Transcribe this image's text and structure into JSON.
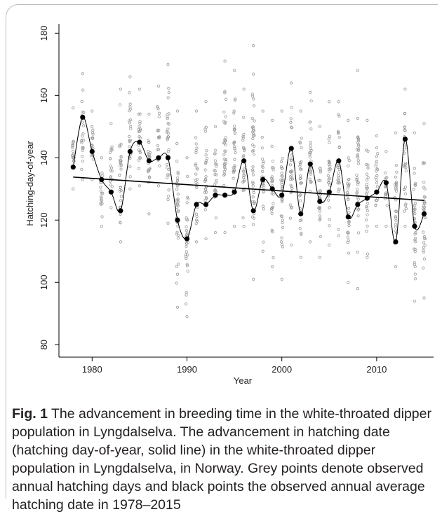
{
  "chart_data": {
    "type": "scatter",
    "xlabel": "Year",
    "ylabel": "Hatching-day-of-year",
    "xlim": [
      1976.5,
      2016
    ],
    "ylim": [
      76,
      183
    ],
    "xticks": [
      1980,
      1990,
      2000,
      2010
    ],
    "yticks": [
      80,
      100,
      120,
      140,
      160,
      180
    ],
    "grid": false,
    "series": [
      {
        "values": [
          [
            1978,
            137
          ],
          [
            1979,
            153
          ],
          [
            1980,
            142
          ],
          [
            1981,
            133
          ],
          [
            1982,
            129
          ],
          [
            1983,
            123
          ],
          [
            1984,
            142
          ],
          [
            1985,
            145
          ],
          [
            1986,
            139
          ],
          [
            1987,
            140
          ],
          [
            1988,
            140
          ],
          [
            1989,
            120
          ],
          [
            1990,
            114
          ],
          [
            1991,
            125
          ],
          [
            1992,
            125
          ],
          [
            1993,
            128
          ],
          [
            1994,
            128
          ],
          [
            1995,
            129
          ],
          [
            1996,
            139
          ],
          [
            1997,
            123
          ],
          [
            1998,
            133
          ],
          [
            1999,
            130
          ],
          [
            2000,
            128
          ],
          [
            2001,
            143
          ],
          [
            2002,
            122
          ],
          [
            2003,
            138
          ],
          [
            2004,
            126
          ],
          [
            2005,
            129
          ],
          [
            2006,
            139
          ],
          [
            2007,
            121
          ],
          [
            2008,
            125
          ],
          [
            2009,
            127
          ],
          [
            2010,
            129
          ],
          [
            2011,
            132
          ],
          [
            2012,
            113
          ],
          [
            2013,
            146
          ],
          [
            2014,
            118
          ],
          [
            2015,
            122
          ]
        ]
      }
    ],
    "trend": {
      "from": [
        1978,
        133.8
      ],
      "to": [
        2015,
        126.3
      ]
    },
    "observations": [
      [
        1978,
        130,
        156
      ],
      [
        1979,
        133,
        167
      ],
      [
        1980,
        133,
        155
      ],
      [
        1981,
        118,
        140
      ],
      [
        1982,
        124,
        151
      ],
      [
        1983,
        113,
        162
      ],
      [
        1984,
        130,
        166
      ],
      [
        1985,
        131,
        162
      ],
      [
        1986,
        122,
        154
      ],
      [
        1987,
        131,
        163
      ],
      [
        1988,
        119,
        170
      ],
      [
        1989,
        92,
        155
      ],
      [
        1990,
        89,
        140
      ],
      [
        1991,
        113,
        155
      ],
      [
        1992,
        114,
        158
      ],
      [
        1993,
        116,
        150
      ],
      [
        1994,
        116,
        171
      ],
      [
        1995,
        118,
        168
      ],
      [
        1996,
        118,
        162
      ],
      [
        1997,
        101,
        176
      ],
      [
        1998,
        110,
        155
      ],
      [
        1999,
        105,
        152
      ],
      [
        2000,
        101,
        155
      ],
      [
        2001,
        112,
        164
      ],
      [
        2002,
        108,
        155
      ],
      [
        2003,
        113,
        161
      ],
      [
        2004,
        108,
        150
      ],
      [
        2005,
        112,
        158
      ],
      [
        2006,
        115,
        158
      ],
      [
        2007,
        100,
        152
      ],
      [
        2008,
        98,
        168
      ],
      [
        2009,
        108,
        152
      ],
      [
        2010,
        118,
        147
      ],
      [
        2011,
        118,
        142
      ],
      [
        2012,
        105,
        148
      ],
      [
        2013,
        118,
        162
      ],
      [
        2014,
        94,
        148
      ],
      [
        2015,
        95,
        151
      ]
    ],
    "colors": {
      "observed": "#9a9a9a",
      "mean": "#000000",
      "line": "#000000"
    }
  },
  "caption": {
    "label": "Fig. 1",
    "text": "  The advancement in breeding time in the white-throated dipper population in Lyngdalselva. The advancement in hatching date (hatching day-of-year, solid line) in the white-throated dipper population in Lyngdalselva, in Norway. Grey points denote observed annual hatching days and black points the observed annual average hatching date in 1978–2015"
  }
}
